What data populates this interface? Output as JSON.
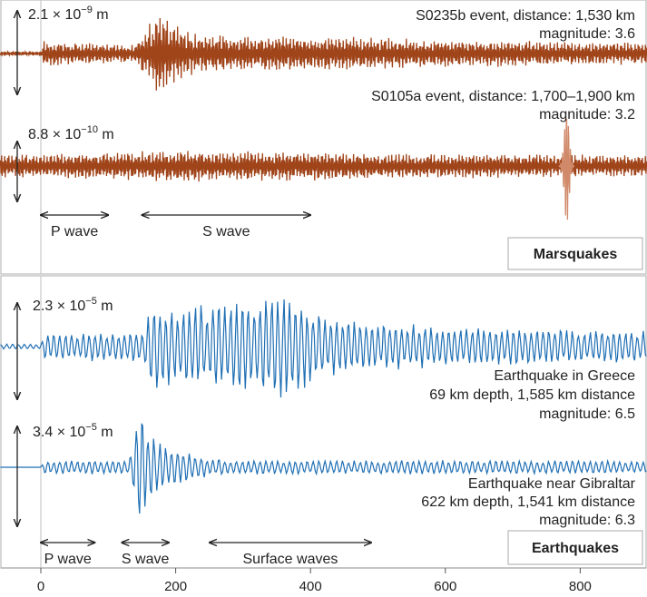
{
  "chart_data": [
    {
      "type": "line",
      "panel_label": "Marsquakes",
      "colors": {
        "trace": "#a0441a",
        "highlight": "#d08a6a"
      },
      "series": [
        {
          "name": "S0235b",
          "event_label": "S0235b event, distance: 1,530 km",
          "magnitude_label": "magnitude: 3.6",
          "scale_mantissa": "2.1 × 10",
          "scale_exp": "−9",
          "scale_unit": " m",
          "envelope": {
            "x": [
              0,
              5,
              40,
              140,
              160,
              175,
              190,
              230,
              300,
              400,
              500,
              600,
              700,
              800,
              900
            ],
            "amplitude": [
              0.05,
              0.3,
              0.25,
              0.2,
              0.65,
              1.0,
              0.7,
              0.45,
              0.4,
              0.4,
              0.35,
              0.3,
              0.3,
              0.25,
              0.25
            ]
          }
        },
        {
          "name": "S0105a",
          "event_label": "S0105a event, distance: 1,700–1,900 km",
          "magnitude_label": "magnitude: 3.2",
          "scale_mantissa": "8.8 × 10",
          "scale_exp": "−10",
          "scale_unit": " m",
          "envelope": {
            "x": [
              0,
              100,
              200,
              300,
              400,
              500,
              600,
              700,
              900
            ],
            "amplitude": [
              0.45,
              0.5,
              0.6,
              0.55,
              0.55,
              0.45,
              0.45,
              0.45,
              0.4
            ]
          },
          "spike": {
            "x": 780,
            "amplitude": 1.1
          }
        }
      ],
      "phases": [
        {
          "label": "P wave",
          "x": [
            0,
            100
          ]
        },
        {
          "label": "S wave",
          "x": [
            150,
            400
          ]
        }
      ]
    },
    {
      "type": "line",
      "panel_label": "Earthquakes",
      "colors": {
        "trace": "#1f6fb4"
      },
      "series": [
        {
          "name": "Greece",
          "event_label": "Earthquake in Greece",
          "depth_label": "69 km depth, 1,585 km distance",
          "magnitude_label": "magnitude: 6.5",
          "scale_mantissa": "2.3 × 10",
          "scale_exp": "−5",
          "scale_unit": " m",
          "envelope": {
            "x": [
              -60,
              0,
              5,
              150,
              165,
              200,
              240,
              300,
              320,
              360,
              420,
              500,
              600,
              700,
              900
            ],
            "amplitude": [
              0.05,
              0.05,
              0.25,
              0.3,
              0.9,
              0.7,
              0.8,
              0.85,
              0.9,
              1.0,
              0.6,
              0.45,
              0.4,
              0.35,
              0.3
            ]
          }
        },
        {
          "name": "Gibraltar",
          "event_label": "Earthquake near Gibraltar",
          "depth_label": "622 km depth, 1,541 km distance",
          "magnitude_label": "magnitude: 6.3",
          "scale_mantissa": "3.4 × 10",
          "scale_exp": "−5",
          "scale_unit": " m",
          "envelope": {
            "x": [
              -60,
              0,
              5,
              130,
              140,
              145,
              160,
              200,
              250,
              300,
              500,
              700,
              900
            ],
            "amplitude": [
              0.0,
              0.0,
              0.12,
              0.12,
              0.7,
              1.0,
              0.6,
              0.3,
              0.15,
              0.12,
              0.12,
              0.12,
              0.1
            ]
          }
        }
      ],
      "phases": [
        {
          "label": "P wave",
          "x": [
            0,
            80
          ]
        },
        {
          "label": "S wave",
          "x": [
            120,
            190
          ]
        },
        {
          "label": "Surface waves",
          "x": [
            250,
            490
          ]
        }
      ]
    }
  ],
  "x_axis": {
    "ticks": [
      0,
      200,
      400,
      600,
      800
    ],
    "range": [
      -60,
      900
    ]
  }
}
